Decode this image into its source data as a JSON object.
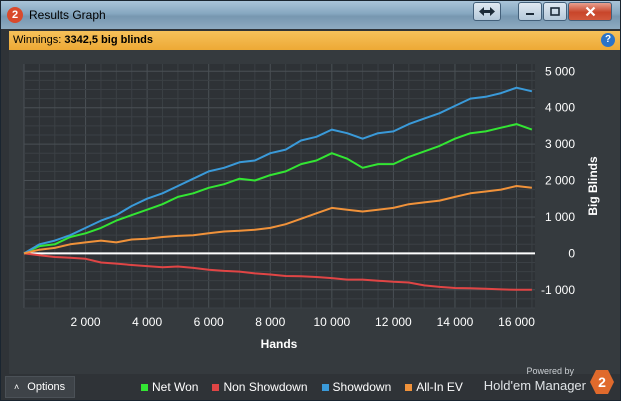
{
  "window": {
    "title": "Results Graph",
    "app_badge": "2"
  },
  "winnings_bar": {
    "label": "Winnings:",
    "value": "3342,5 big blinds"
  },
  "footer": {
    "options_label": "Options",
    "powered_by": "Powered by",
    "brand": "Hold'em Manager",
    "brand_badge": "2"
  },
  "chart_data": {
    "type": "line",
    "xlabel": "Hands",
    "ylabel": "Big Blinds",
    "xlim": [
      0,
      16600
    ],
    "ylim": [
      -1500,
      5200
    ],
    "xticks": [
      2000,
      4000,
      6000,
      8000,
      10000,
      12000,
      14000,
      16000
    ],
    "xtick_labels": [
      "2 000",
      "4 000",
      "6 000",
      "8 000",
      "10 000",
      "12 000",
      "14 000",
      "16 000"
    ],
    "yticks": [
      5000,
      4000,
      3000,
      2000,
      1000,
      0,
      -1000
    ],
    "ytick_labels": [
      "5 000",
      "4 000",
      "3 000",
      "2 000",
      "1 000",
      "0",
      "-1 000"
    ],
    "grid": true,
    "legend_position": "bottom",
    "series": [
      {
        "name": "Net Won",
        "color": "#33e633",
        "x": [
          0,
          500,
          1000,
          1500,
          2000,
          2500,
          3000,
          3500,
          4000,
          4500,
          5000,
          5500,
          6000,
          6500,
          7000,
          7500,
          8000,
          8500,
          9000,
          9500,
          10000,
          10500,
          11000,
          11500,
          12000,
          12500,
          13000,
          13500,
          14000,
          14500,
          15000,
          15500,
          16000,
          16500
        ],
        "values": [
          0,
          200,
          250,
          450,
          550,
          700,
          900,
          1050,
          1200,
          1350,
          1550,
          1650,
          1800,
          1900,
          2050,
          2000,
          2150,
          2250,
          2450,
          2550,
          2750,
          2600,
          2350,
          2450,
          2450,
          2650,
          2800,
          2950,
          3150,
          3300,
          3350,
          3450,
          3550,
          3400
        ]
      },
      {
        "name": "Non Showdown",
        "color": "#e04545",
        "x": [
          0,
          500,
          1000,
          1500,
          2000,
          2500,
          3000,
          3500,
          4000,
          4500,
          5000,
          5500,
          6000,
          6500,
          7000,
          7500,
          8000,
          8500,
          9000,
          9500,
          10000,
          10500,
          11000,
          11500,
          12000,
          12500,
          13000,
          13500,
          14000,
          14500,
          15000,
          15500,
          16000,
          16500
        ],
        "values": [
          0,
          -50,
          -100,
          -120,
          -150,
          -250,
          -280,
          -320,
          -350,
          -380,
          -360,
          -400,
          -450,
          -480,
          -500,
          -550,
          -580,
          -620,
          -630,
          -650,
          -680,
          -720,
          -720,
          -750,
          -780,
          -800,
          -880,
          -920,
          -950,
          -960,
          -970,
          -990,
          -1000,
          -1000
        ]
      },
      {
        "name": "Showdown",
        "color": "#3a9ad9",
        "x": [
          0,
          500,
          1000,
          1500,
          2000,
          2500,
          3000,
          3500,
          4000,
          4500,
          5000,
          5500,
          6000,
          6500,
          7000,
          7500,
          8000,
          8500,
          9000,
          9500,
          10000,
          10500,
          11000,
          11500,
          12000,
          12500,
          13000,
          13500,
          14000,
          14500,
          15000,
          15500,
          16000,
          16500
        ],
        "values": [
          0,
          250,
          350,
          500,
          700,
          900,
          1050,
          1300,
          1500,
          1650,
          1850,
          2050,
          2250,
          2350,
          2500,
          2550,
          2750,
          2850,
          3100,
          3200,
          3400,
          3300,
          3150,
          3300,
          3350,
          3550,
          3700,
          3850,
          4050,
          4250,
          4300,
          4400,
          4550,
          4450
        ]
      },
      {
        "name": "All-In EV",
        "color": "#f0923a",
        "x": [
          0,
          500,
          1000,
          1500,
          2000,
          2500,
          3000,
          3500,
          4000,
          4500,
          5000,
          5500,
          6000,
          6500,
          7000,
          7500,
          8000,
          8500,
          9000,
          9500,
          10000,
          10500,
          11000,
          11500,
          12000,
          12500,
          13000,
          13500,
          14000,
          14500,
          15000,
          15500,
          16000,
          16500
        ],
        "values": [
          0,
          100,
          150,
          250,
          300,
          350,
          300,
          380,
          400,
          450,
          480,
          500,
          550,
          600,
          620,
          650,
          700,
          800,
          950,
          1100,
          1250,
          1200,
          1150,
          1200,
          1250,
          1350,
          1400,
          1450,
          1550,
          1650,
          1700,
          1750,
          1850,
          1800
        ]
      }
    ]
  }
}
